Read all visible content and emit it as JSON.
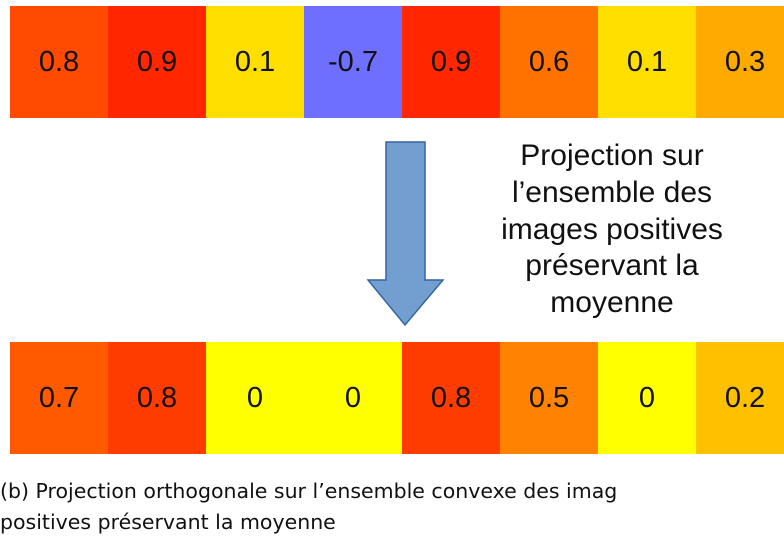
{
  "top_row": {
    "cells": [
      {
        "text": "0.8",
        "color": "#ff4a00"
      },
      {
        "text": "0.9",
        "color": "#ff2600"
      },
      {
        "text": "0.1",
        "color": "#ffdf00"
      },
      {
        "text": "-0.7",
        "color": "#6e6eff"
      },
      {
        "text": "0.9",
        "color": "#ff2600"
      },
      {
        "text": "0.6",
        "color": "#ff7200"
      },
      {
        "text": "0.1",
        "color": "#ffdf00"
      },
      {
        "text": "0.3",
        "color": "#ffaa00"
      }
    ]
  },
  "annotation": {
    "lines": [
      "Projection sur",
      "l’ensemble des",
      "images positives",
      "préservant la",
      "moyenne"
    ]
  },
  "bottom_row": {
    "cells": [
      {
        "text": "0.7",
        "color": "#ff5a00"
      },
      {
        "text": "0.8",
        "color": "#ff3c00"
      },
      {
        "text": "0",
        "color": "#ffff00"
      },
      {
        "text": "0",
        "color": "#ffff00"
      },
      {
        "text": "0.8",
        "color": "#ff3c00"
      },
      {
        "text": "0.5",
        "color": "#ff8200"
      },
      {
        "text": "0",
        "color": "#ffff00"
      },
      {
        "text": "0.2",
        "color": "#ffc000"
      }
    ]
  },
  "caption": {
    "lines": [
      "(b) Projection orthogonale sur l’ensemble convexe des imag",
      "positives préservant la moyenne"
    ]
  }
}
